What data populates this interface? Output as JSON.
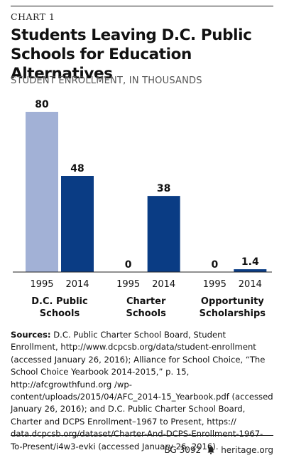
{
  "header": {
    "chart_number": "CHART 1",
    "title": "Students Leaving D.C. Public Schools for Education Alternatives",
    "subtitle": "STUDENT ENROLLMENT, IN THOUSANDS"
  },
  "chart_data": {
    "type": "bar",
    "title": "Students Leaving D.C. Public Schools for Education Alternatives",
    "ylabel": "STUDENT ENROLLMENT, IN THOUSANDS",
    "groups": [
      {
        "label": [
          "D.C. Public",
          "Schools"
        ],
        "bars": [
          {
            "year": "1995",
            "value": 80,
            "label": "80"
          },
          {
            "year": "2014",
            "value": 48,
            "label": "48"
          }
        ]
      },
      {
        "label": [
          "Charter",
          "Schools"
        ],
        "bars": [
          {
            "year": "1995",
            "value": 0,
            "label": "0"
          },
          {
            "year": "2014",
            "value": 38,
            "label": "38"
          }
        ]
      },
      {
        "label": [
          "Opportunity",
          "Scholarships"
        ],
        "bars": [
          {
            "year": "1995",
            "value": 0,
            "label": "0"
          },
          {
            "year": "2014",
            "value": 1.4,
            "label": "1.4"
          }
        ]
      }
    ],
    "ylim": [
      0,
      80
    ],
    "colors": {
      "1995": "#a2b1d6",
      "2014": "#0a3c84"
    },
    "grid": false
  },
  "sources": {
    "label": "Sources:",
    "text": "D.C. Public Charter School Board, Student Enrollment, http://www.dcpcsb.org/data/student-enrollment (accessed January 26, 2016); Alliance for School Choice, “The School Choice Yearbook 2014-2015,” p. 15, http://afcgrowthfund.org /wp-content/uploads/2015/04/AFC_2014-15_Yearbook.pdf (accessed January 26, 2016); and D.C. Public Charter School Board, Charter and DCPS Enrollment–1967 to Present, https:// data.dcpcsb.org/dataset/Charter-And-DCPS-Enrollment-1967- To-Present/i4w3-evki (accessed January 26, 2016)."
  },
  "footer": {
    "report_id": "BG 3092",
    "site": "heritage.org",
    "icon": "bell-icon"
  }
}
